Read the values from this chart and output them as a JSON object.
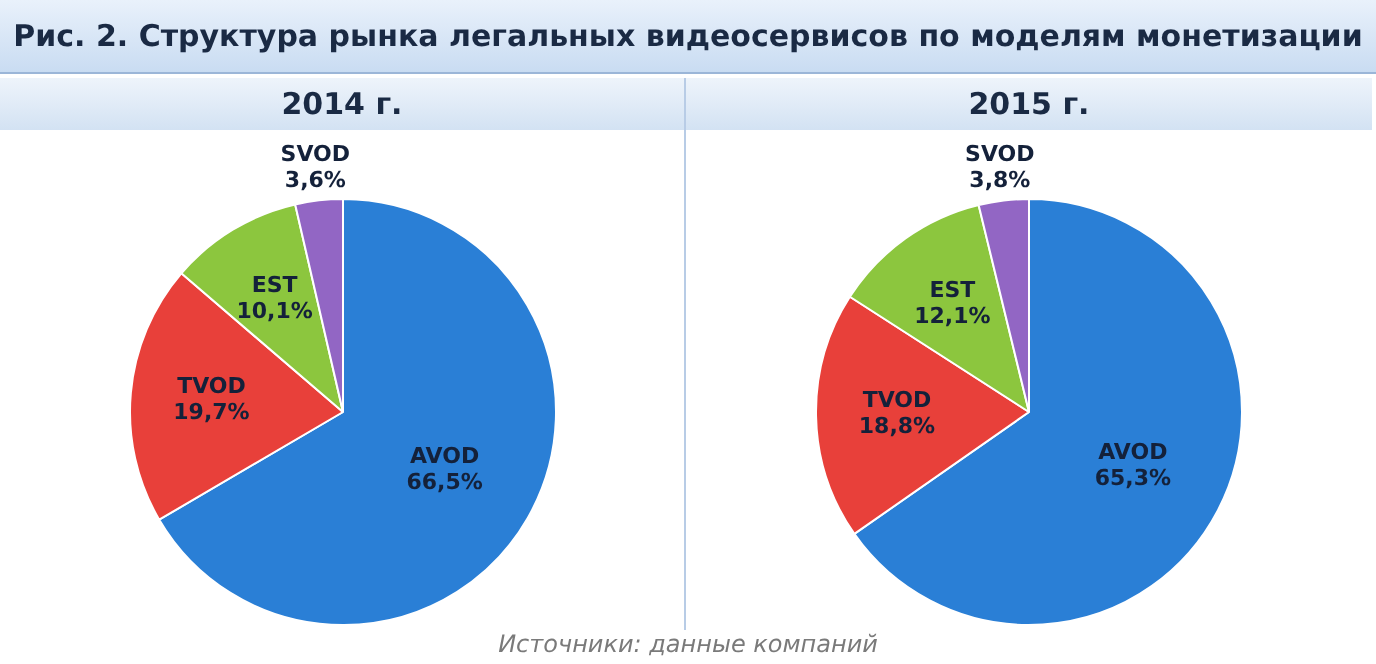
{
  "chart_data": [
    {
      "type": "other",
      "title": "Рис. 2. Структура рынка легальных видеосервисов по моделям монетизации",
      "annotations": [
        "Источники: данные компаний"
      ]
    },
    {
      "type": "pie",
      "title": "2014 г.",
      "categories": [
        "AVOD",
        "TVOD",
        "EST",
        "SVOD"
      ],
      "values": [
        66.5,
        19.7,
        10.1,
        3.6
      ],
      "colors": [
        "#2a7fd6",
        "#e8403a",
        "#8cc63e",
        "#9266c4"
      ],
      "value_labels": [
        "66,5%",
        "19,7%",
        "10,1%",
        "3,6%"
      ],
      "legend": false
    },
    {
      "type": "pie",
      "title": "2015 г.",
      "categories": [
        "AVOD",
        "TVOD",
        "EST",
        "SVOD"
      ],
      "values": [
        65.3,
        18.8,
        12.1,
        3.8
      ],
      "colors": [
        "#2a7fd6",
        "#e8403a",
        "#8cc63e",
        "#9266c4"
      ],
      "value_labels": [
        "65,3%",
        "18,8%",
        "12,1%",
        "3,8%"
      ],
      "legend": false
    }
  ]
}
